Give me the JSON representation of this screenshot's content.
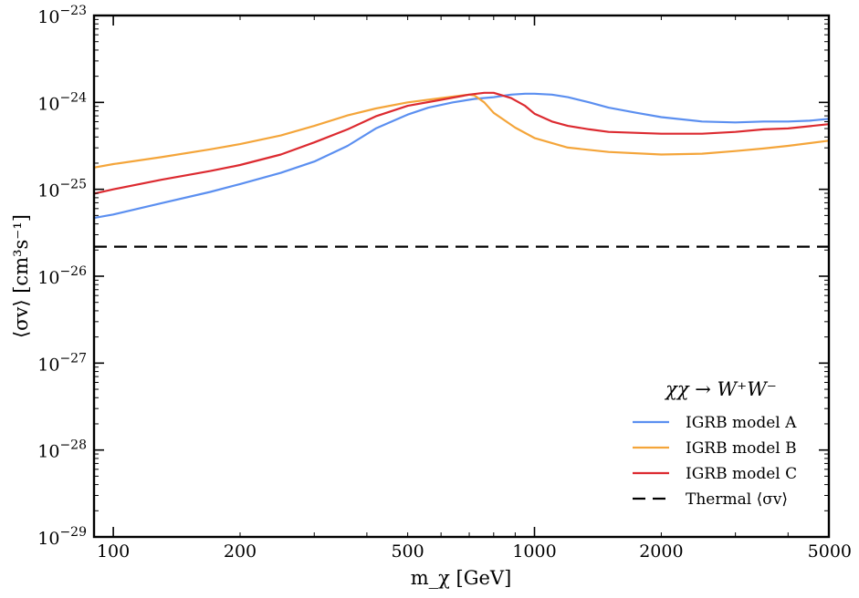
{
  "chart_data": {
    "type": "line",
    "xscale": "log",
    "yscale": "log",
    "xlim": [
      90,
      5000
    ],
    "ylim": [
      1e-29,
      1e-23
    ],
    "xlabel": "m_χ [GeV]",
    "ylabel": "⟨σv⟩ [cm³s⁻¹]",
    "grid": false,
    "legend_position": "bottom-right",
    "legend_title": "χχ → W⁺W⁻",
    "xticks": [
      {
        "value": 100,
        "label": "100"
      },
      {
        "value": 200,
        "label": "200"
      },
      {
        "value": 500,
        "label": "500"
      },
      {
        "value": 1000,
        "label": "1000"
      },
      {
        "value": 2000,
        "label": "2000"
      },
      {
        "value": 5000,
        "label": "5000"
      }
    ],
    "yticks": [
      {
        "value": -29,
        "base": "10",
        "exp": "−29"
      },
      {
        "value": -28,
        "base": "10",
        "exp": "−28"
      },
      {
        "value": -27,
        "base": "10",
        "exp": "−27"
      },
      {
        "value": -26,
        "base": "10",
        "exp": "−26"
      },
      {
        "value": -25,
        "base": "10",
        "exp": "−25"
      },
      {
        "value": -24,
        "base": "10",
        "exp": "−24"
      },
      {
        "value": -23,
        "base": "10",
        "exp": "−23"
      }
    ],
    "series": [
      {
        "name": "IGRB model A",
        "color": "#5b8ff0",
        "dash": "solid",
        "x": [
          90,
          100,
          130,
          170,
          200,
          250,
          300,
          360,
          420,
          500,
          560,
          640,
          720,
          800,
          880,
          950,
          1000,
          1100,
          1200,
          1350,
          1500,
          1750,
          2000,
          2500,
          3000,
          3500,
          4000,
          4500,
          5000
        ],
        "y": [
          -25.33,
          -25.29,
          -25.16,
          -25.03,
          -24.94,
          -24.81,
          -24.68,
          -24.5,
          -24.3,
          -24.14,
          -24.06,
          -24.0,
          -23.96,
          -23.94,
          -23.91,
          -23.9,
          -23.9,
          -23.91,
          -23.94,
          -24.0,
          -24.06,
          -24.12,
          -24.17,
          -24.22,
          -24.23,
          -24.22,
          -24.22,
          -24.21,
          -24.19
        ]
      },
      {
        "name": "IGRB model B",
        "color": "#f4a53a",
        "dash": "solid",
        "x": [
          90,
          100,
          130,
          170,
          200,
          250,
          300,
          360,
          420,
          500,
          600,
          700,
          720,
          760,
          800,
          900,
          1000,
          1200,
          1500,
          2000,
          2500,
          3000,
          3500,
          4000,
          5000
        ],
        "y": [
          -24.75,
          -24.71,
          -24.63,
          -24.54,
          -24.48,
          -24.38,
          -24.27,
          -24.15,
          -24.07,
          -24.0,
          -23.95,
          -23.91,
          -23.92,
          -24.0,
          -24.12,
          -24.29,
          -24.41,
          -24.52,
          -24.57,
          -24.6,
          -24.59,
          -24.56,
          -24.53,
          -24.5,
          -24.44
        ]
      },
      {
        "name": "IGRB model C",
        "color": "#dc2a30",
        "dash": "solid",
        "x": [
          90,
          100,
          130,
          170,
          200,
          250,
          300,
          360,
          420,
          500,
          600,
          700,
          760,
          800,
          880,
          950,
          1000,
          1100,
          1200,
          1350,
          1500,
          2000,
          2500,
          3000,
          3500,
          4000,
          5000
        ],
        "y": [
          -25.05,
          -25.0,
          -24.89,
          -24.79,
          -24.72,
          -24.6,
          -24.46,
          -24.31,
          -24.16,
          -24.04,
          -23.97,
          -23.91,
          -23.89,
          -23.89,
          -23.95,
          -24.04,
          -24.13,
          -24.22,
          -24.27,
          -24.31,
          -24.34,
          -24.36,
          -24.36,
          -24.34,
          -24.31,
          -24.3,
          -24.25
        ]
      },
      {
        "name": "Thermal ⟨σv⟩",
        "color": "#000000",
        "dash": "dashed",
        "x": [
          90,
          5000
        ],
        "y": [
          -25.66,
          -25.66
        ]
      }
    ]
  }
}
